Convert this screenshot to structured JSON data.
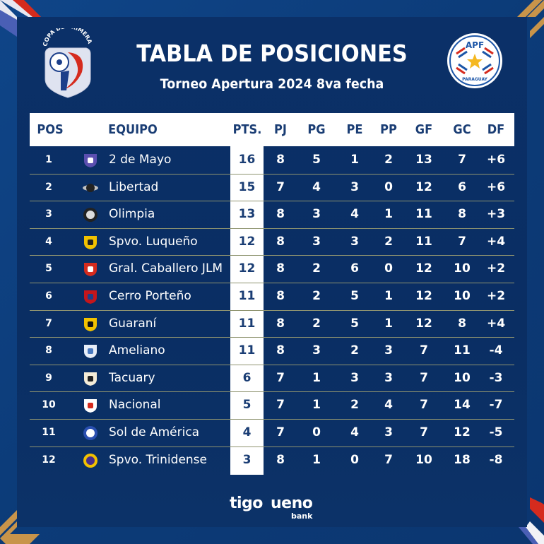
{
  "header": {
    "title": "TABLA DE POSICIONES",
    "subtitle": "Torneo Apertura 2024 8va fecha",
    "left_logo": {
      "icon": "copa-de-primera-logo",
      "text": "COPA DE PRIMERA"
    },
    "right_logo": {
      "icon": "apf-paraguay-logo",
      "top_text": "APF",
      "bottom_text": "PARAGUAY"
    }
  },
  "table": {
    "columns": [
      "POS",
      "EQUIPO",
      "PTS.",
      "PJ",
      "PG",
      "PE",
      "PP",
      "GF",
      "GC",
      "DF"
    ],
    "rows": [
      {
        "pos": "1",
        "team": "2 de Mayo",
        "crest": "2-de-mayo-crest",
        "pts": "16",
        "pj": "8",
        "pg": "5",
        "pe": "1",
        "pp": "2",
        "gf": "13",
        "gc": "7",
        "df": "+6"
      },
      {
        "pos": "2",
        "team": "Libertad",
        "crest": "libertad-crest",
        "pts": "15",
        "pj": "7",
        "pg": "4",
        "pe": "3",
        "pp": "0",
        "gf": "12",
        "gc": "6",
        "df": "+6"
      },
      {
        "pos": "3",
        "team": "Olimpia",
        "crest": "olimpia-crest",
        "pts": "13",
        "pj": "8",
        "pg": "3",
        "pe": "4",
        "pp": "1",
        "gf": "11",
        "gc": "8",
        "df": "+3"
      },
      {
        "pos": "4",
        "team": "Spvo. Luqueño",
        "crest": "luqueno-crest",
        "pts": "12",
        "pj": "8",
        "pg": "3",
        "pe": "3",
        "pp": "2",
        "gf": "11",
        "gc": "7",
        "df": "+4"
      },
      {
        "pos": "5",
        "team": "Gral. Caballero JLM",
        "crest": "gral-caballero-crest",
        "pts": "12",
        "pj": "8",
        "pg": "2",
        "pe": "6",
        "pp": "0",
        "gf": "12",
        "gc": "10",
        "df": "+2"
      },
      {
        "pos": "6",
        "team": "Cerro Porteño",
        "crest": "cerro-porteno-crest",
        "pts": "11",
        "pj": "8",
        "pg": "2",
        "pe": "5",
        "pp": "1",
        "gf": "12",
        "gc": "10",
        "df": "+2"
      },
      {
        "pos": "7",
        "team": "Guaraní",
        "crest": "guarani-crest",
        "pts": "11",
        "pj": "8",
        "pg": "2",
        "pe": "5",
        "pp": "1",
        "gf": "12",
        "gc": "8",
        "df": "+4"
      },
      {
        "pos": "8",
        "team": "Ameliano",
        "crest": "ameliano-crest",
        "pts": "11",
        "pj": "8",
        "pg": "3",
        "pe": "2",
        "pp": "3",
        "gf": "7",
        "gc": "11",
        "df": "-4"
      },
      {
        "pos": "9",
        "team": "Tacuary",
        "crest": "tacuary-crest",
        "pts": "6",
        "pj": "7",
        "pg": "1",
        "pe": "3",
        "pp": "3",
        "gf": "7",
        "gc": "10",
        "df": "-3"
      },
      {
        "pos": "10",
        "team": "Nacional",
        "crest": "nacional-crest",
        "pts": "5",
        "pj": "7",
        "pg": "1",
        "pe": "2",
        "pp": "4",
        "gf": "7",
        "gc": "14",
        "df": "-7"
      },
      {
        "pos": "11",
        "team": "Sol de América",
        "crest": "sol-de-america-crest",
        "pts": "4",
        "pj": "7",
        "pg": "0",
        "pe": "4",
        "pp": "3",
        "gf": "7",
        "gc": "12",
        "df": "-5"
      },
      {
        "pos": "12",
        "team": "Spvo. Trinidense",
        "crest": "trinidense-crest",
        "pts": "3",
        "pj": "8",
        "pg": "1",
        "pe": "0",
        "pp": "7",
        "gf": "10",
        "gc": "18",
        "df": "-8"
      }
    ]
  },
  "sponsors": {
    "tigo": "tigo",
    "ueno": "ueno",
    "ueno_sub": "bank"
  },
  "colors": {
    "background": "#0c3b78",
    "panel": "#0a2e63",
    "header_bg": "#ffffff",
    "header_text": "#1a3d74",
    "divider": "#8f9470",
    "flag_red": "#d52b1e",
    "flag_blue": "#4a5fb5",
    "gold": "#c8944a"
  }
}
